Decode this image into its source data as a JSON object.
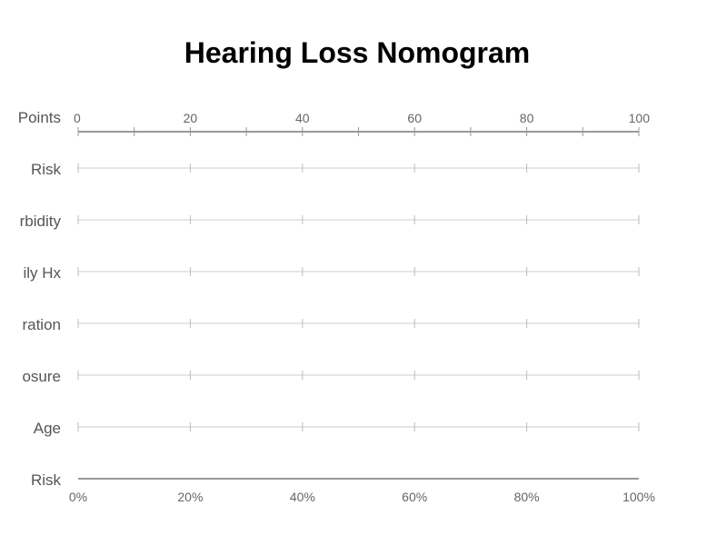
{
  "chart_data": {
    "type": "nomogram",
    "title": "Hearing Loss Nomogram",
    "rows": [
      "Points",
      "Risk",
      "rbidity",
      "ily Hx",
      "ration",
      "osure",
      "Age",
      "Risk"
    ],
    "points_axis": {
      "range": [
        0,
        100
      ],
      "major_ticks": [
        0,
        20,
        40,
        60,
        80,
        100
      ],
      "minor_step": 10
    },
    "risk_axis": {
      "range": [
        0,
        100
      ],
      "ticks": [
        0,
        20,
        40,
        60,
        80,
        100
      ],
      "tick_labels": [
        "0%",
        "20%",
        "40%",
        "60%",
        "80%",
        "100%"
      ]
    },
    "grid": true,
    "data_present": false
  }
}
